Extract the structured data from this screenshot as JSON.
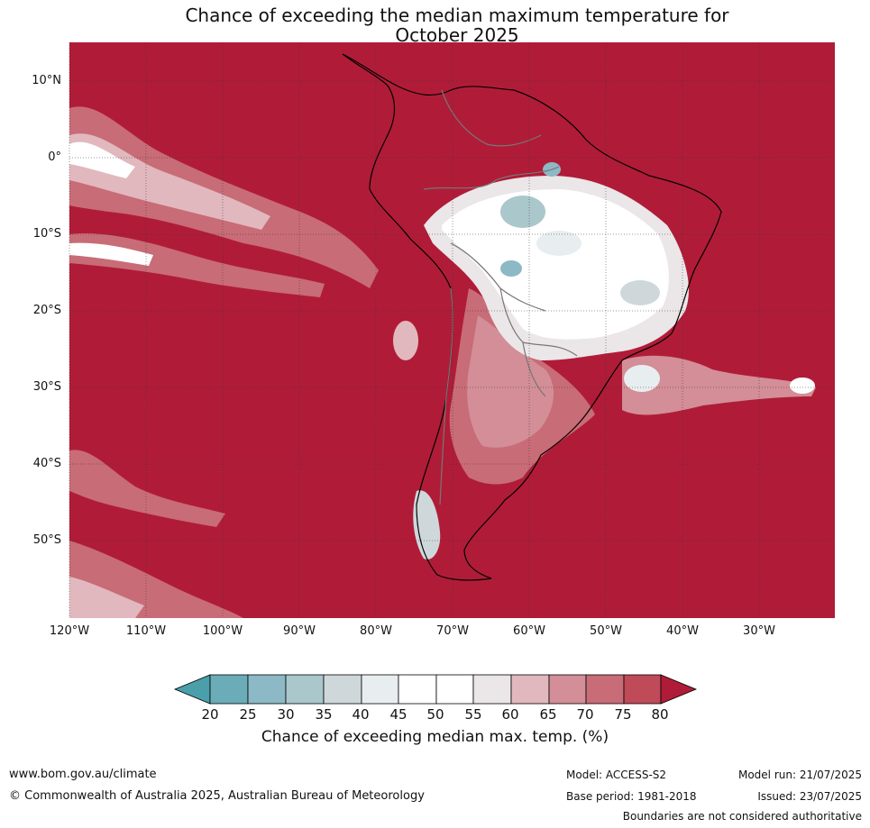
{
  "title": {
    "line1": "Chance of exceeding the median maximum temperature for",
    "line2": "October 2025"
  },
  "map": {
    "background_color": "#b01c38",
    "region": "South America and surrounding oceans",
    "lon_range": [
      -120,
      -20
    ],
    "lat_range": [
      -60,
      15
    ],
    "lat_labels": [
      "10°N",
      "0°",
      "10°S",
      "20°S",
      "30°S",
      "40°S",
      "50°S"
    ],
    "lon_labels": [
      "120°W",
      "110°W",
      "100°W",
      "90°W",
      "80°W",
      "70°W",
      "60°W",
      "50°W",
      "40°W",
      "30°W"
    ]
  },
  "colorbar": {
    "ticks": [
      "20",
      "25",
      "30",
      "35",
      "40",
      "45",
      "50",
      "55",
      "60",
      "65",
      "70",
      "75",
      "80"
    ],
    "colors": [
      "#4a9fab",
      "#6aacb8",
      "#8cb9c5",
      "#aac7cc",
      "#ced8db",
      "#e8eef0",
      "#ffffff",
      "#ffffff",
      "#ebe6e8",
      "#e1b8be",
      "#d38e97",
      "#c86c77",
      "#bf4a58",
      "#b01c38"
    ],
    "label": "Chance of exceeding median max. temp. (%)"
  },
  "footer": {
    "url": "www.bom.gov.au/climate",
    "copyright": "© Commonwealth of Australia 2025, Australian Bureau of Meteorology",
    "model": "Model: ACCESS-S2",
    "base_period": "Base period: 1981-2018",
    "model_run": "Model run: 21/07/2025",
    "issued": "Issued: 23/07/2025",
    "disclaimer": "Boundaries are not considered authoritative"
  }
}
